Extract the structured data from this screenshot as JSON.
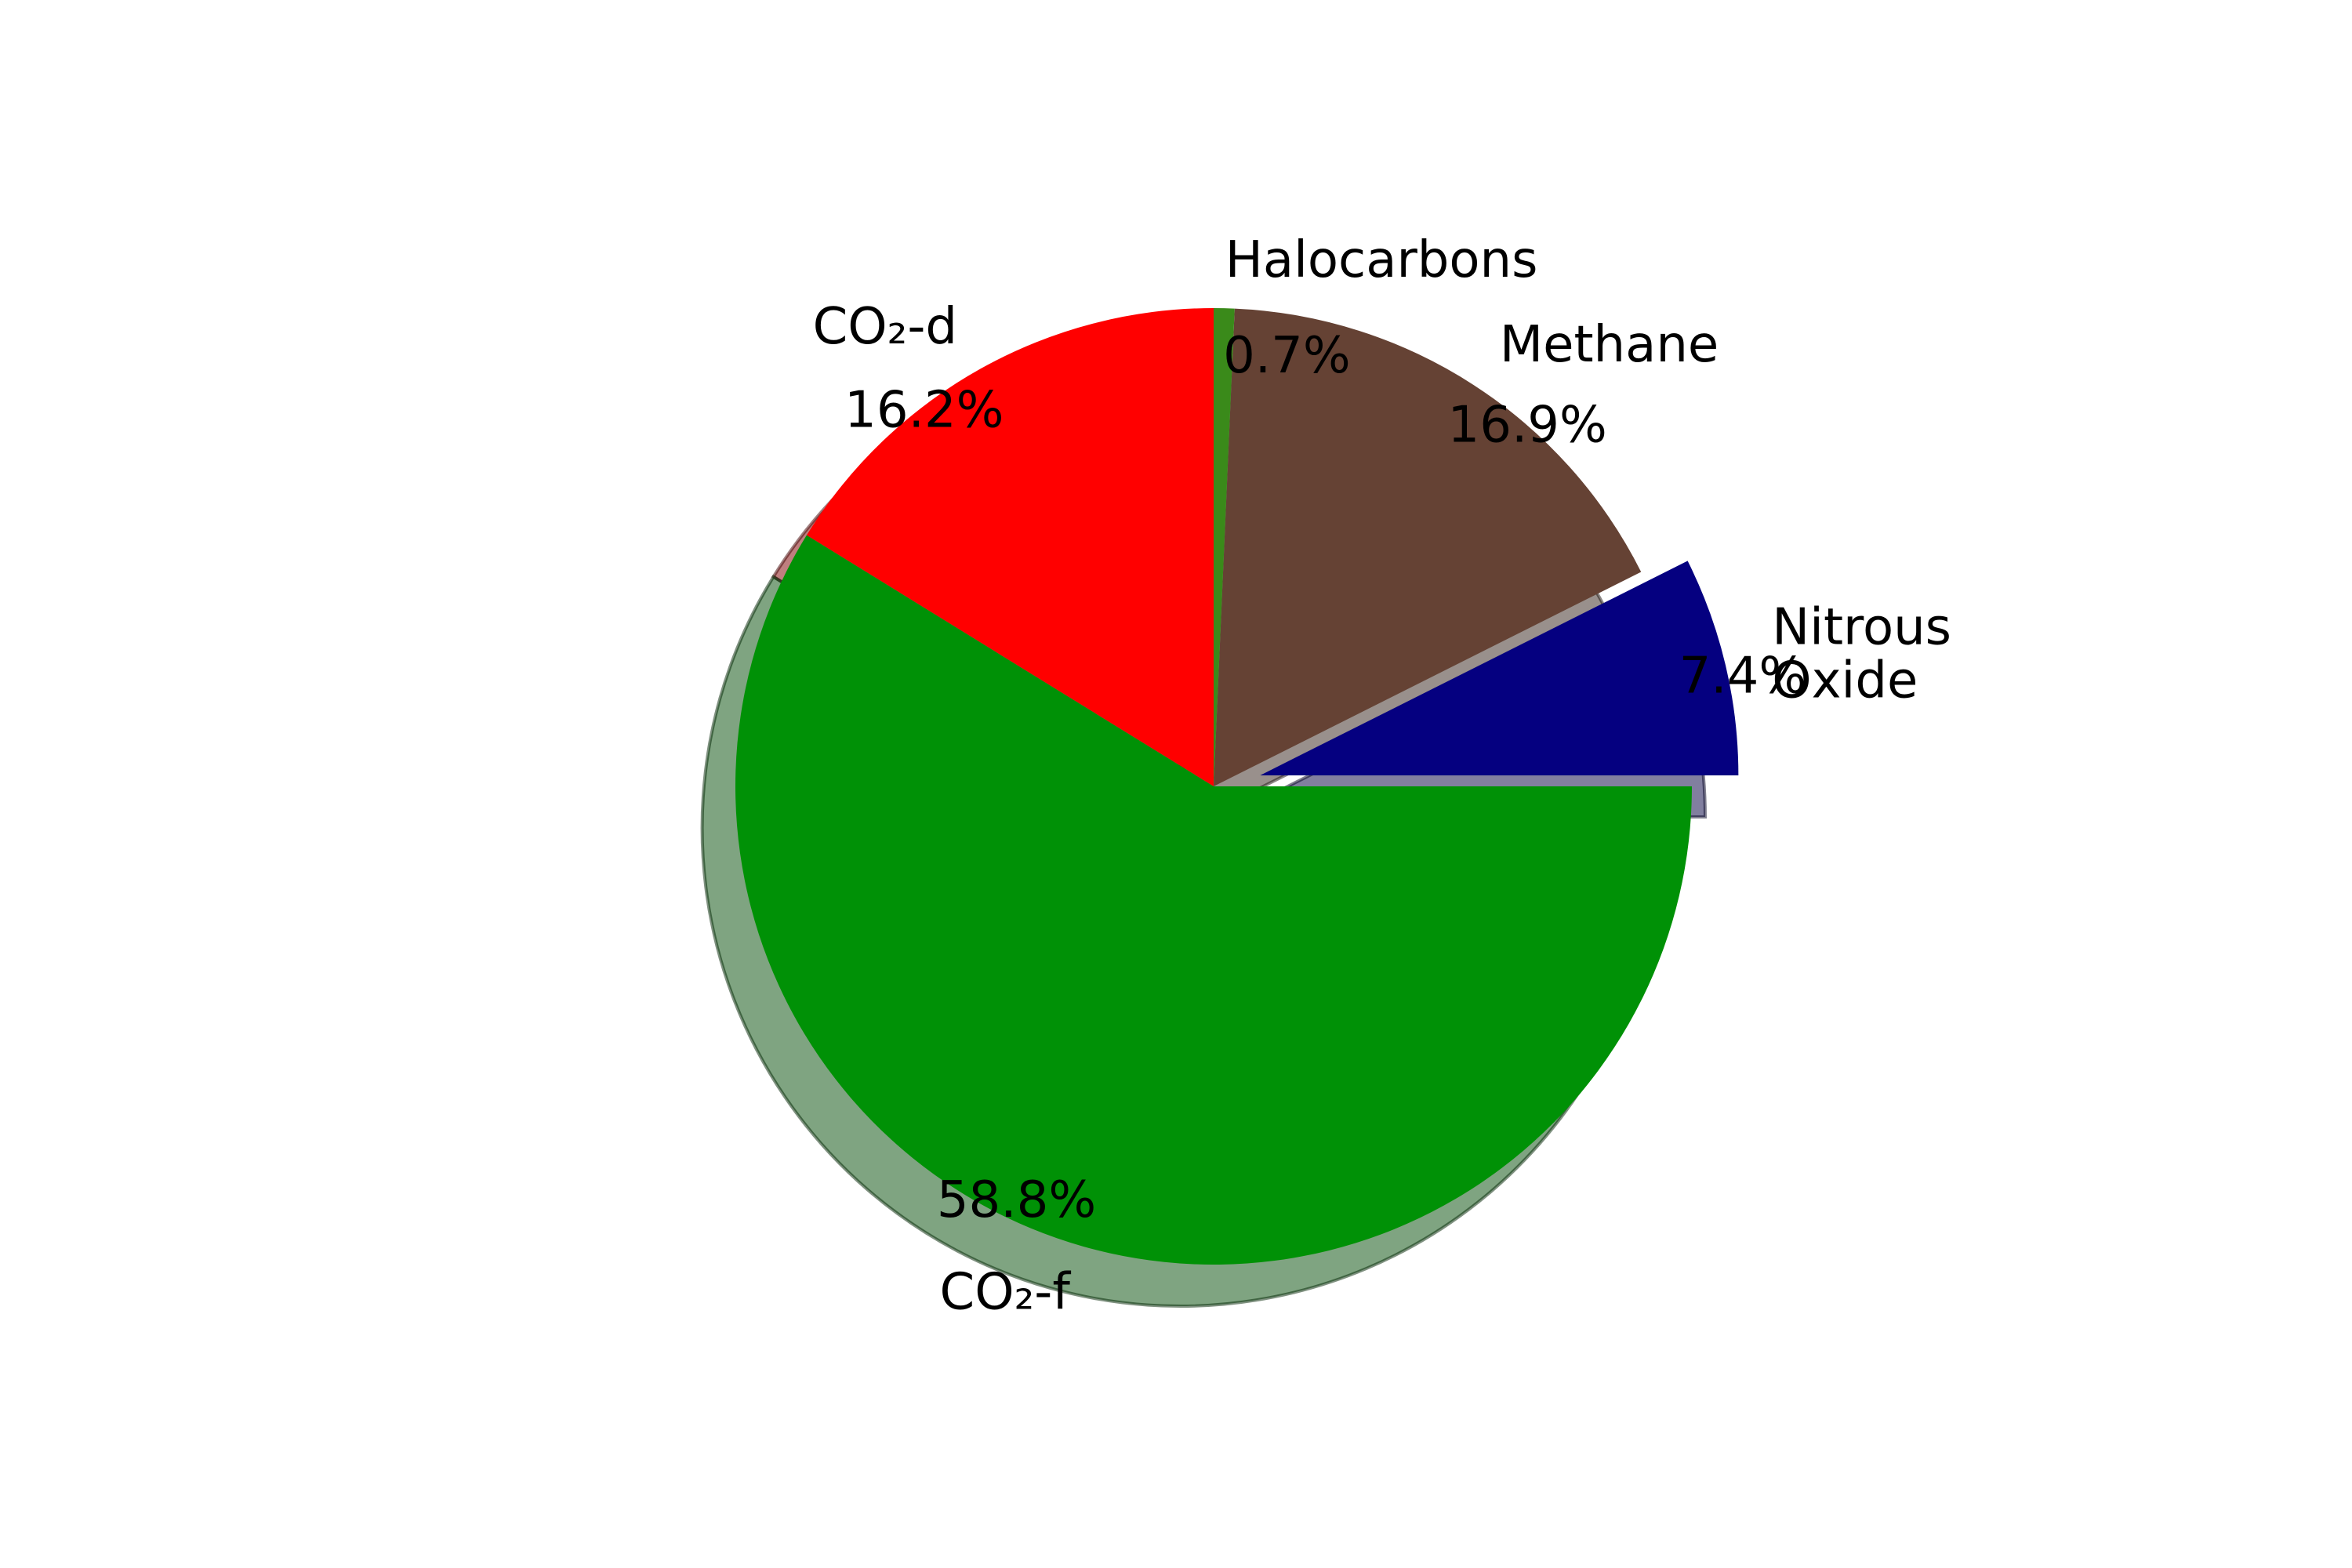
{
  "chart_data": {
    "type": "pie",
    "title": "",
    "start_angle_deg": 0,
    "direction": "counterclockwise",
    "shadow": true,
    "slices": [
      {
        "label": "Nitrous Oxide",
        "label_lines": [
          "Nitrous",
          "Oxide"
        ],
        "value": 7.4,
        "pct_label": "7.4%",
        "color": "#050080",
        "exploded": true
      },
      {
        "label": "Methane",
        "label_lines": [
          "Methane"
        ],
        "value": 16.9,
        "pct_label": "16.9%",
        "color": "#654234",
        "exploded": false
      },
      {
        "label": "Halocarbons",
        "label_lines": [
          "Halocarbons"
        ],
        "value": 0.7,
        "pct_label": "0.7%",
        "color": "#3a8a1a",
        "exploded": false
      },
      {
        "label": "CO₂-d",
        "label_lines": [
          "CO₂-d"
        ],
        "value": 16.2,
        "pct_label": "16.2%",
        "color": "#ff0000",
        "exploded": false
      },
      {
        "label": "CO₂-f",
        "label_lines": [
          "CO₂-f"
        ],
        "value": 58.8,
        "pct_label": "58.8%",
        "color": "#009106",
        "exploded": false
      }
    ]
  }
}
